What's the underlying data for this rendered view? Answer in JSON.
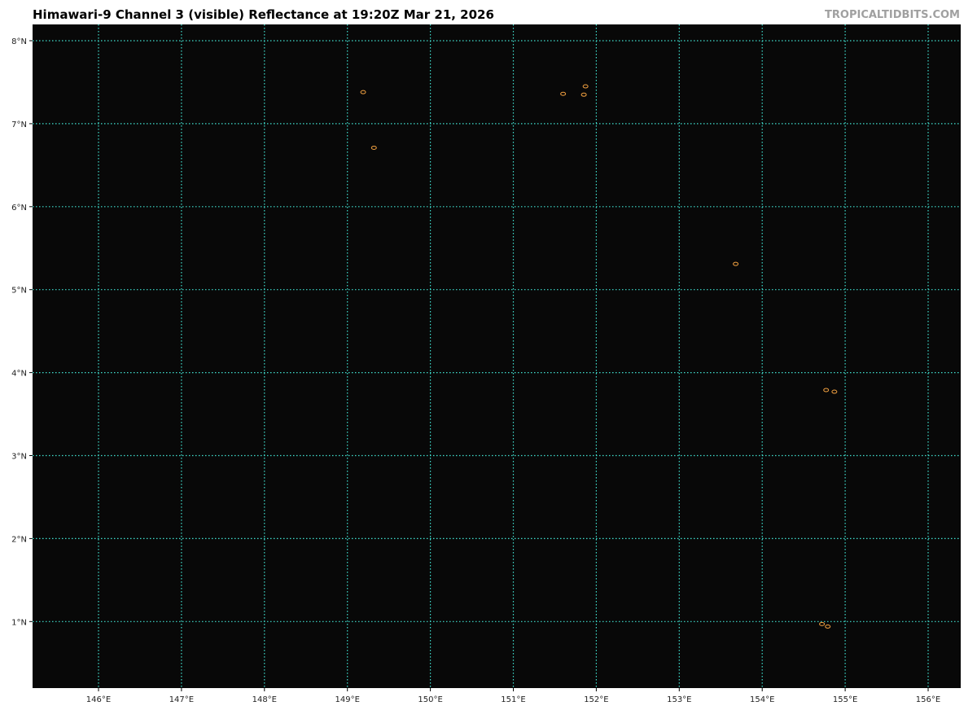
{
  "title": "Himawari-9 Channel 3 (visible) Reflectance at 19:20Z Mar 21, 2026",
  "brand": "TROPICALTIDBITS.COM",
  "map": {
    "lon_range": [
      145.2,
      156.4
    ],
    "lat_range": [
      0.2,
      8.2
    ],
    "lon_ticks": [
      146,
      147,
      148,
      149,
      150,
      151,
      152,
      153,
      154,
      155,
      156
    ],
    "lat_ticks": [
      1,
      2,
      3,
      4,
      5,
      6,
      7,
      8
    ],
    "lon_labels": [
      "146°E",
      "147°E",
      "148°E",
      "149°E",
      "150°E",
      "151°E",
      "152°E",
      "153°E",
      "154°E",
      "155°E",
      "156°E"
    ],
    "lat_labels": [
      "1°N",
      "2°N",
      "3°N",
      "4°N",
      "5°N",
      "6°N",
      "7°N",
      "8°N"
    ],
    "grid_color": "#40e0d0",
    "coastline_color": "#f0a040",
    "background": "#080808",
    "islands": [
      [
        149.19,
        7.38
      ],
      [
        149.32,
        6.71
      ],
      [
        151.6,
        7.36
      ],
      [
        151.87,
        7.45
      ],
      [
        151.85,
        7.35
      ],
      [
        153.68,
        5.31
      ],
      [
        154.77,
        3.79
      ],
      [
        154.87,
        3.77
      ],
      [
        154.72,
        0.97
      ],
      [
        154.79,
        0.94
      ]
    ]
  }
}
